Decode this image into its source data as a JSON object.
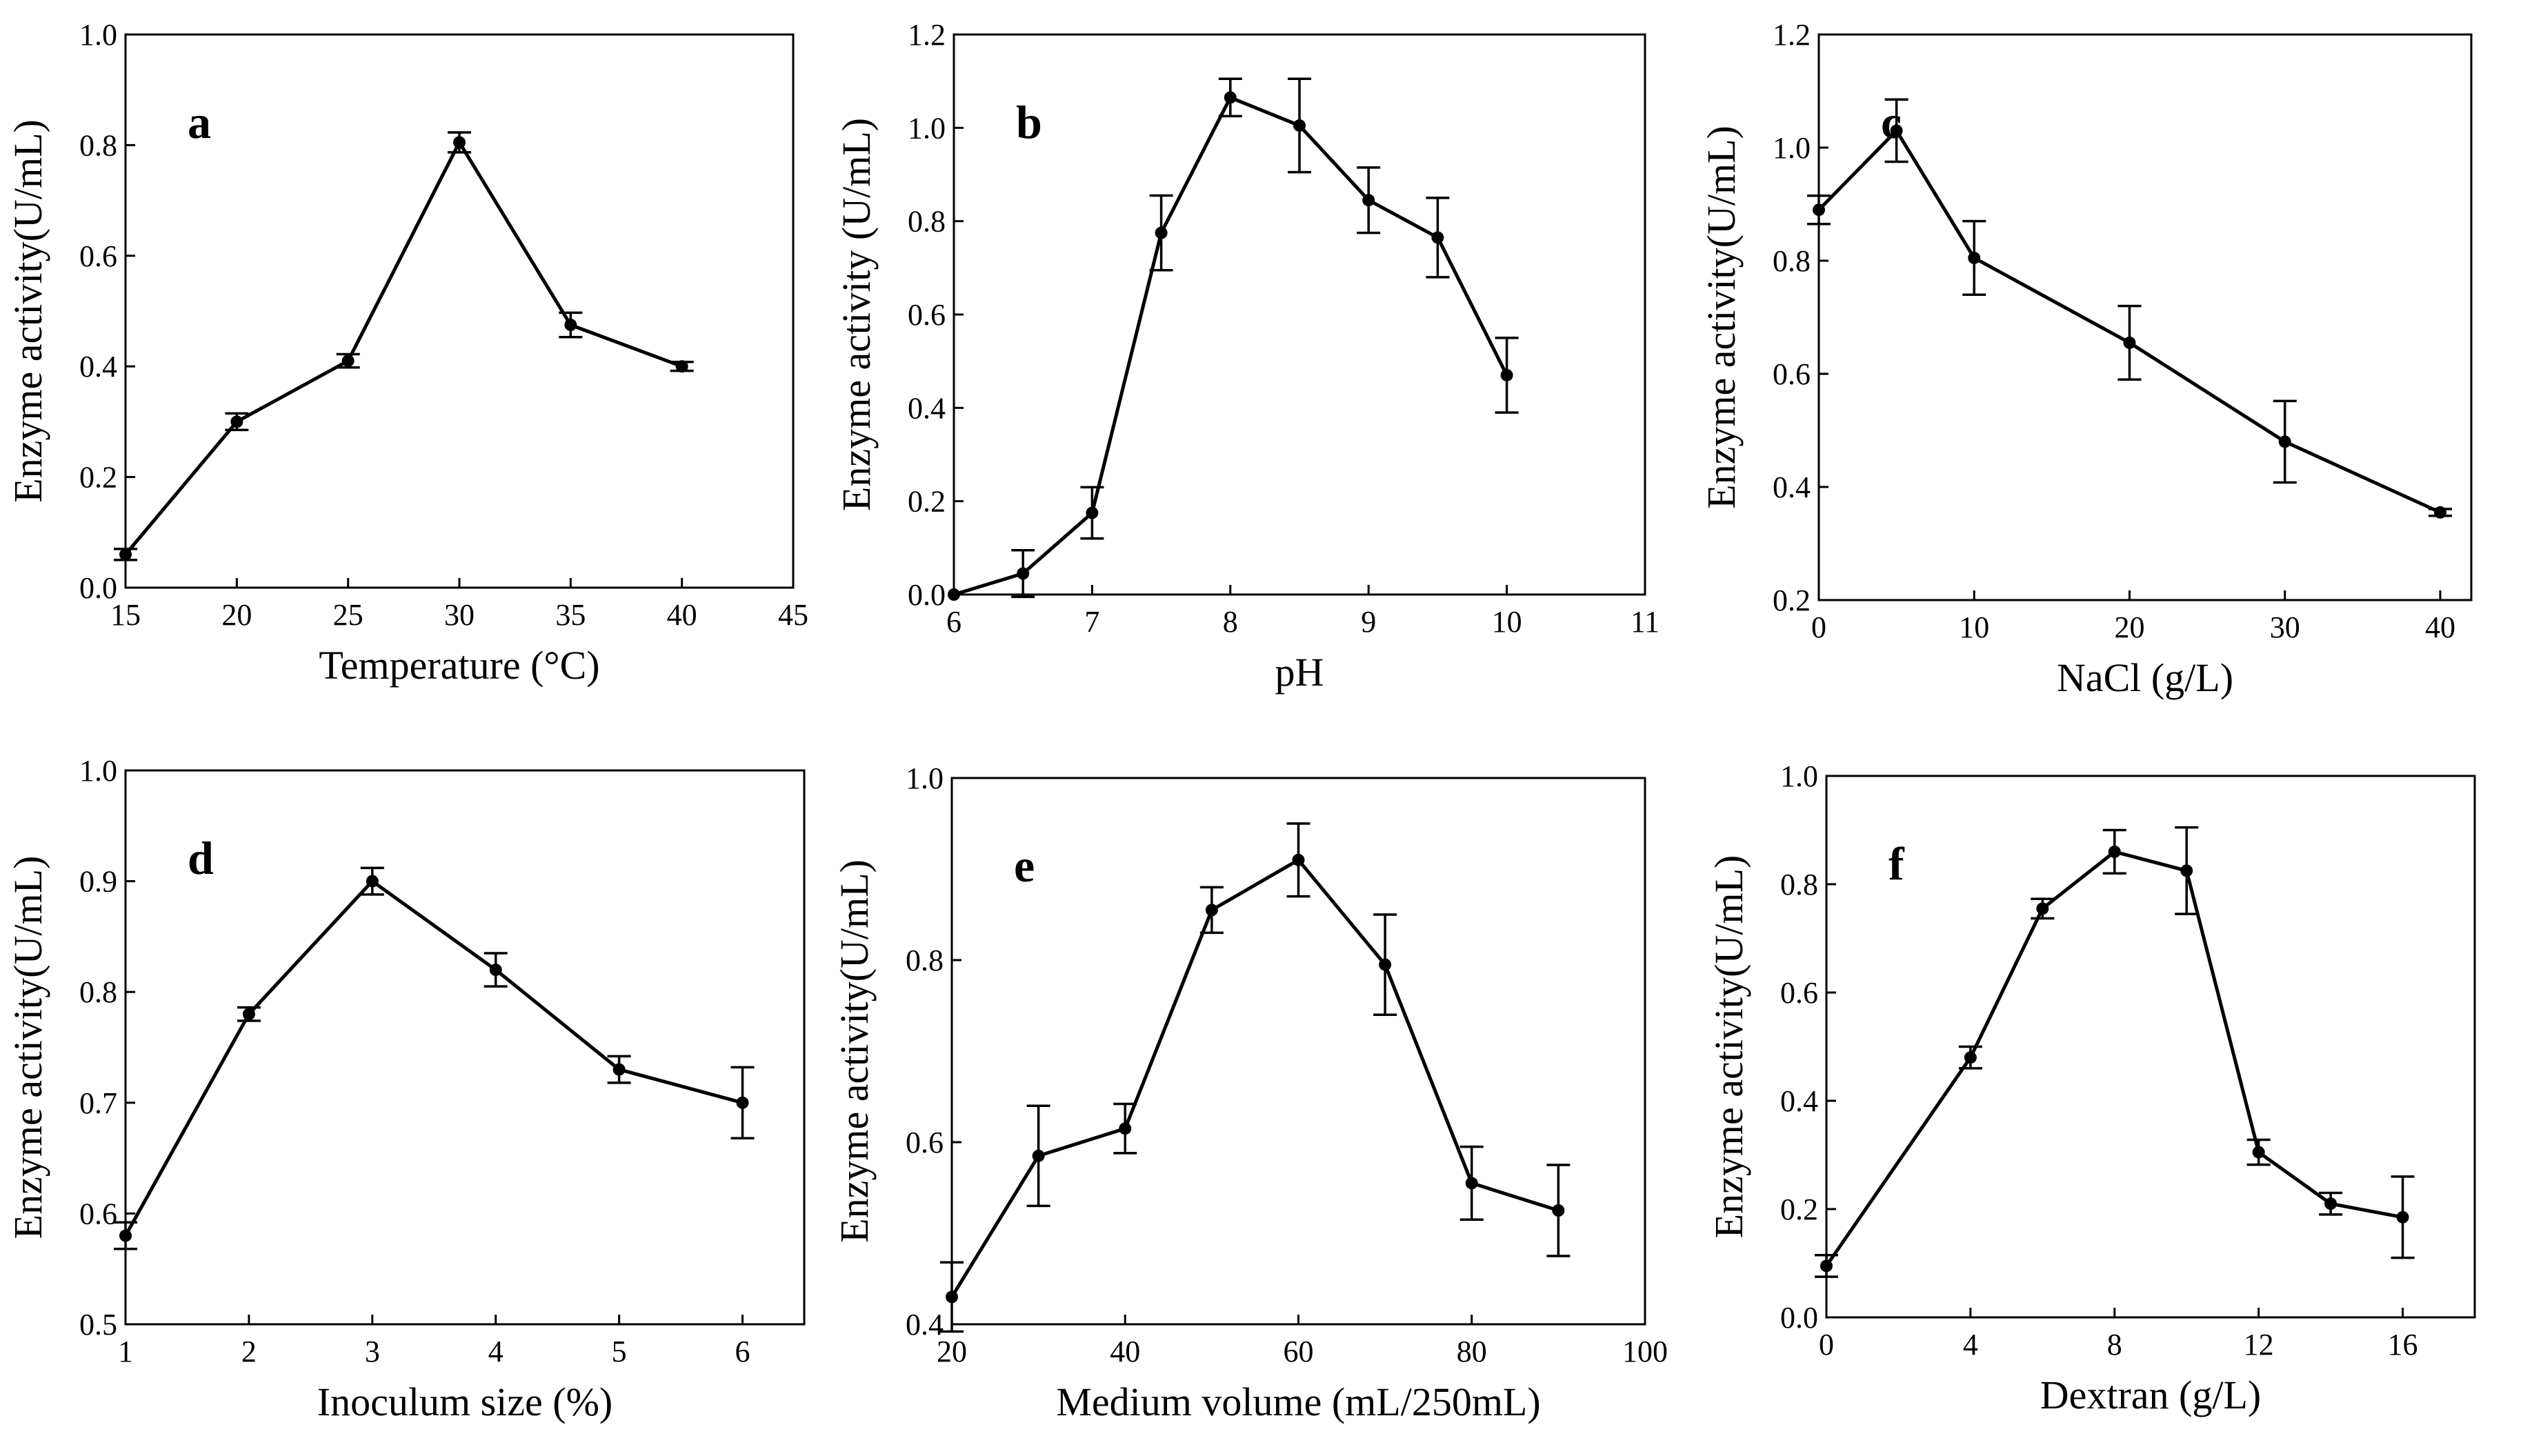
{
  "chart_data": [
    {
      "type": "line",
      "panel": "a",
      "xlabel": "Temperature (°C)",
      "ylabel": "Enzyme activity(U/mL)",
      "xlim": [
        15,
        45
      ],
      "ylim": [
        0.0,
        1.0
      ],
      "xticks": [
        15,
        20,
        25,
        30,
        35,
        40,
        45
      ],
      "xtick_labels": [
        "15",
        "20",
        "25",
        "30",
        "35",
        "40",
        "45"
      ],
      "yticks": [
        0.0,
        0.2,
        0.4,
        0.6,
        0.8,
        1.0
      ],
      "ytick_labels": [
        "0.0",
        "0.2",
        "0.4",
        "0.6",
        "0.8",
        "1.0"
      ],
      "x": [
        15,
        20,
        25,
        30,
        35,
        40
      ],
      "y": [
        0.06,
        0.3,
        0.41,
        0.805,
        0.475,
        0.4
      ],
      "err": [
        0.01,
        0.015,
        0.012,
        0.018,
        0.022,
        0.008
      ]
    },
    {
      "type": "line",
      "panel": "b",
      "xlabel": "pH",
      "ylabel": "Enzyme activity (U/mL)",
      "xlim": [
        6,
        11
      ],
      "ylim": [
        0.0,
        1.2
      ],
      "xticks": [
        6,
        7,
        8,
        9,
        10,
        11
      ],
      "xtick_labels": [
        "6",
        "7",
        "8",
        "9",
        "10",
        "11"
      ],
      "yticks": [
        0.0,
        0.2,
        0.4,
        0.6,
        0.8,
        1.0,
        1.2
      ],
      "ytick_labels": [
        "0.0",
        "0.2",
        "0.4",
        "0.6",
        "0.8",
        "1.0",
        "1.2"
      ],
      "x": [
        6,
        6.5,
        7,
        7.5,
        8,
        8.5,
        9,
        9.5,
        10
      ],
      "y": [
        0.0,
        0.045,
        0.175,
        0.775,
        1.065,
        1.005,
        0.845,
        0.765,
        0.47
      ],
      "err": [
        0.0,
        0.05,
        0.055,
        0.08,
        0.04,
        0.1,
        0.07,
        0.085,
        0.08
      ]
    },
    {
      "type": "line",
      "panel": "c",
      "xlabel": "NaCl (g/L)",
      "ylabel": "Enzyme activity(U/mL)",
      "xlim": [
        0,
        42
      ],
      "ylim": [
        0.2,
        1.2
      ],
      "xticks": [
        0,
        10,
        20,
        30,
        40
      ],
      "xtick_labels": [
        "0",
        "10",
        "20",
        "30",
        "40"
      ],
      "yticks": [
        0.2,
        0.4,
        0.6,
        0.8,
        1.0,
        1.2
      ],
      "ytick_labels": [
        "0.2",
        "0.4",
        "0.6",
        "0.8",
        "1.0",
        "1.2"
      ],
      "x": [
        0,
        5,
        10,
        20,
        30,
        40
      ],
      "y": [
        0.89,
        1.03,
        0.805,
        0.655,
        0.48,
        0.355
      ],
      "err": [
        0.025,
        0.055,
        0.065,
        0.065,
        0.072,
        0.006
      ]
    },
    {
      "type": "line",
      "panel": "d",
      "xlabel": "Inoculum size (%)",
      "ylabel": "Enzyme activity(U/mL)",
      "xlim": [
        1,
        6.5
      ],
      "ylim": [
        0.5,
        1.0
      ],
      "xticks": [
        1,
        2,
        3,
        4,
        5,
        6
      ],
      "xtick_labels": [
        "1",
        "2",
        "3",
        "4",
        "5",
        "6"
      ],
      "yticks": [
        0.5,
        0.6,
        0.7,
        0.8,
        0.9,
        1.0
      ],
      "ytick_labels": [
        "0.5",
        "0.6",
        "0.7",
        "0.8",
        "0.9",
        "1.0"
      ],
      "x": [
        1,
        2,
        3,
        4,
        5,
        6
      ],
      "y": [
        0.58,
        0.78,
        0.9,
        0.82,
        0.73,
        0.7
      ],
      "err": [
        0.012,
        0.006,
        0.012,
        0.015,
        0.012,
        0.032
      ]
    },
    {
      "type": "line",
      "panel": "e",
      "xlabel": "Medium volume (mL/250mL)",
      "ylabel": "Enzyme activity(U/mL)",
      "xlim": [
        20,
        100
      ],
      "ylim": [
        0.4,
        1.0
      ],
      "xticks": [
        20,
        40,
        60,
        80,
        100
      ],
      "xtick_labels": [
        "20",
        "40",
        "60",
        "80",
        "100"
      ],
      "yticks": [
        0.4,
        0.6,
        0.8,
        1.0
      ],
      "ytick_labels": [
        "0.4",
        "0.6",
        "0.8",
        "1.0"
      ],
      "x": [
        20,
        30,
        40,
        50,
        60,
        70,
        80,
        90
      ],
      "y": [
        0.43,
        0.585,
        0.615,
        0.855,
        0.91,
        0.795,
        0.555,
        0.525
      ],
      "err": [
        0.038,
        0.055,
        0.027,
        0.025,
        0.04,
        0.055,
        0.04,
        0.05
      ]
    },
    {
      "type": "line",
      "panel": "f",
      "xlabel": "Dextran (g/L)",
      "ylabel": "Enzyme activity(U/mL)",
      "xlim": [
        0,
        18
      ],
      "ylim": [
        0.0,
        1.0
      ],
      "xticks": [
        0,
        4,
        8,
        12,
        16
      ],
      "xtick_labels": [
        "0",
        "4",
        "8",
        "12",
        "16"
      ],
      "yticks": [
        0.0,
        0.2,
        0.4,
        0.6,
        0.8,
        1.0
      ],
      "ytick_labels": [
        "0.0",
        "0.2",
        "0.4",
        "0.6",
        "0.8",
        "1.0"
      ],
      "x": [
        0,
        4,
        6,
        8,
        10,
        12,
        14,
        16
      ],
      "y": [
        0.095,
        0.48,
        0.755,
        0.86,
        0.825,
        0.305,
        0.21,
        0.185
      ],
      "err": [
        0.02,
        0.02,
        0.018,
        0.04,
        0.08,
        0.023,
        0.02,
        0.075
      ]
    }
  ]
}
